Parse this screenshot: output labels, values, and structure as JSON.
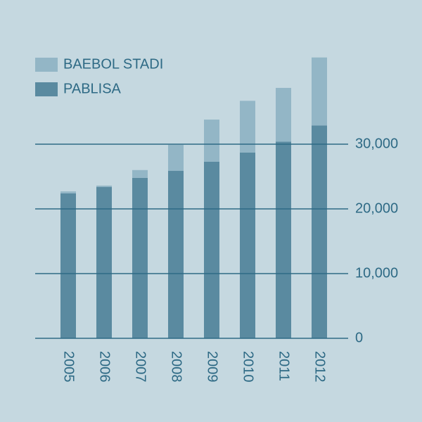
{
  "chart_data": {
    "type": "stacked_bar",
    "categories": [
      "2005",
      "2006",
      "2007",
      "2008",
      "2009",
      "2010",
      "2011",
      "2012"
    ],
    "series": [
      {
        "name": "BAEBOL STADI",
        "color": "#93b6c6",
        "values": [
          300,
          200,
          1200,
          4000,
          6500,
          8000,
          8300,
          10500
        ]
      },
      {
        "name": "PABLISA",
        "color": "#5a8aa0",
        "values": [
          22400,
          23400,
          24800,
          25900,
          27300,
          28700,
          30400,
          32900
        ]
      }
    ],
    "ylim": [
      0,
      45000
    ],
    "yticks": [
      0,
      {
        "value": 10000,
        "label": "10,000"
      },
      {
        "value": 20000,
        "label": "20,000"
      },
      {
        "value": 30000,
        "label": "30,000"
      }
    ],
    "grid": true,
    "legend": "top-left"
  }
}
